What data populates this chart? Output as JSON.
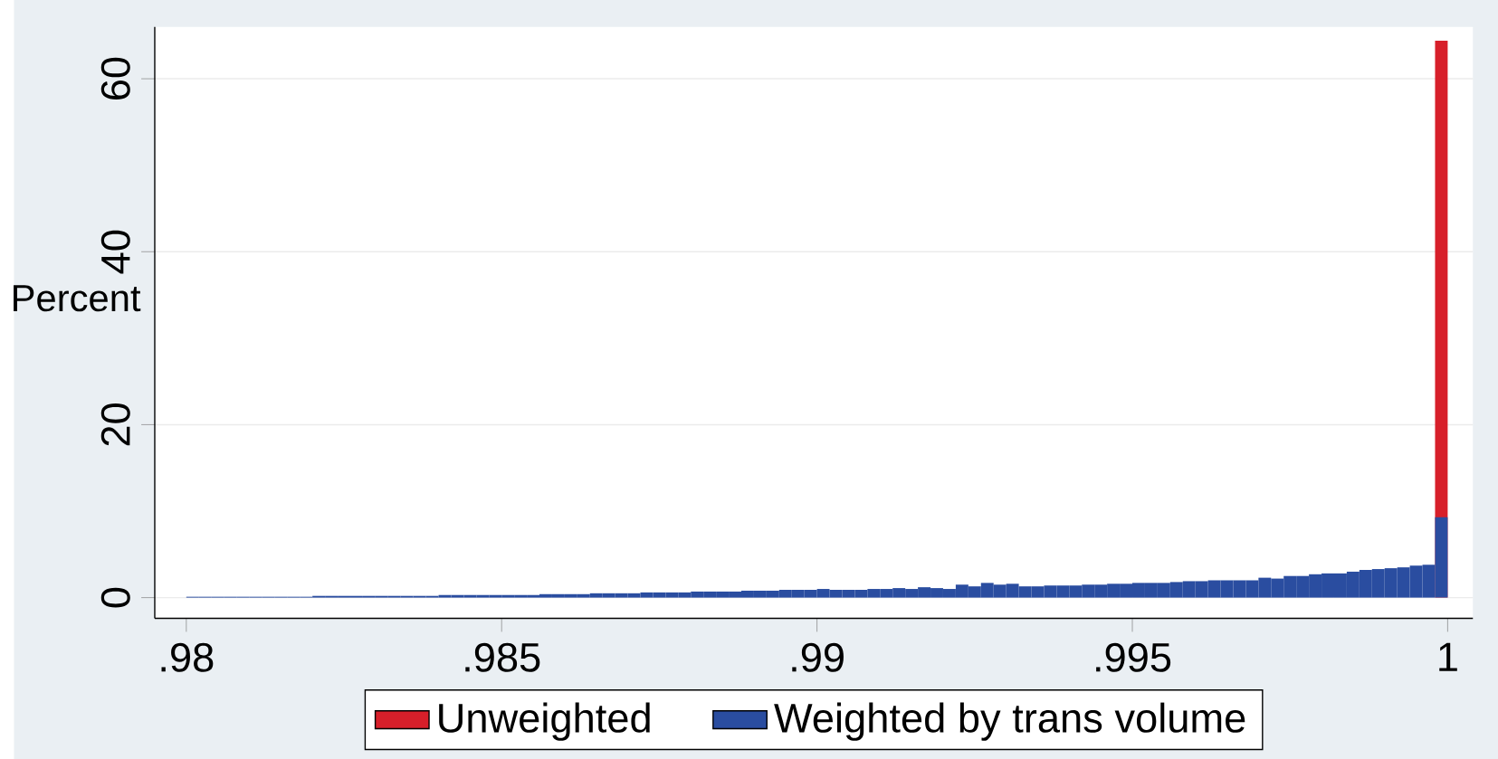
{
  "chart_data": {
    "type": "histogram",
    "ylabel": "Percent",
    "bins": [
      0.98,
      0.9802,
      0.9804,
      0.9806,
      0.9808,
      0.981,
      0.9812,
      0.9814,
      0.9816,
      0.9818,
      0.982,
      0.9822,
      0.9824,
      0.9826,
      0.9828,
      0.983,
      0.9832,
      0.9834,
      0.9836,
      0.9838,
      0.984,
      0.9842,
      0.9844,
      0.9846,
      0.9848,
      0.985,
      0.9852,
      0.9854,
      0.9856,
      0.9858,
      0.986,
      0.9862,
      0.9864,
      0.9866,
      0.9868,
      0.987,
      0.9872,
      0.9874,
      0.9876,
      0.9878,
      0.988,
      0.9882,
      0.9884,
      0.9886,
      0.9888,
      0.989,
      0.9892,
      0.9894,
      0.9896,
      0.9898,
      0.99,
      0.9902,
      0.9904,
      0.9906,
      0.9908,
      0.991,
      0.9912,
      0.9914,
      0.9916,
      0.9918,
      0.992,
      0.9922,
      0.9924,
      0.9926,
      0.9928,
      0.993,
      0.9932,
      0.9934,
      0.9936,
      0.9938,
      0.994,
      0.9942,
      0.9944,
      0.9946,
      0.9948,
      0.995,
      0.9952,
      0.9954,
      0.9956,
      0.9958,
      0.996,
      0.9962,
      0.9964,
      0.9966,
      0.9968,
      0.997,
      0.9972,
      0.9974,
      0.9976,
      0.9978,
      0.998,
      0.9982,
      0.9984,
      0.9986,
      0.9988,
      0.999,
      0.9992,
      0.9994,
      0.9996,
      0.9998,
      1.0
    ],
    "series": [
      {
        "name": "Unweighted",
        "color": "#d71f2a",
        "values": [
          null,
          null,
          null,
          null,
          null,
          null,
          null,
          null,
          null,
          null,
          null,
          null,
          null,
          null,
          null,
          null,
          null,
          null,
          null,
          null,
          null,
          null,
          null,
          null,
          null,
          null,
          null,
          null,
          null,
          null,
          null,
          null,
          null,
          null,
          null,
          null,
          null,
          null,
          null,
          null,
          null,
          null,
          null,
          null,
          null,
          null,
          null,
          null,
          null,
          null,
          null,
          null,
          null,
          null,
          null,
          null,
          null,
          null,
          null,
          null,
          null,
          null,
          null,
          null,
          null,
          null,
          null,
          null,
          null,
          null,
          null,
          null,
          null,
          null,
          null,
          null,
          null,
          null,
          null,
          null,
          null,
          null,
          null,
          null,
          null,
          null,
          null,
          null,
          null,
          null,
          null,
          null,
          null,
          null,
          null,
          null,
          null,
          null,
          null,
          64.4
        ]
      },
      {
        "name": "Weighted by trans volume",
        "color": "#2a4da0",
        "values": [
          0.1,
          0.1,
          0.1,
          0.1,
          0.1,
          0.1,
          0.1,
          0.1,
          0.1,
          0.1,
          0.2,
          0.2,
          0.2,
          0.2,
          0.2,
          0.2,
          0.2,
          0.2,
          0.2,
          0.2,
          0.3,
          0.3,
          0.3,
          0.3,
          0.3,
          0.3,
          0.3,
          0.3,
          0.4,
          0.4,
          0.4,
          0.4,
          0.5,
          0.5,
          0.5,
          0.5,
          0.6,
          0.6,
          0.6,
          0.6,
          0.7,
          0.7,
          0.7,
          0.7,
          0.8,
          0.8,
          0.8,
          0.9,
          0.9,
          0.9,
          1.0,
          0.9,
          0.9,
          0.9,
          1.0,
          1.0,
          1.1,
          1.0,
          1.2,
          1.1,
          1.0,
          1.5,
          1.3,
          1.7,
          1.5,
          1.6,
          1.3,
          1.3,
          1.4,
          1.4,
          1.4,
          1.5,
          1.5,
          1.6,
          1.6,
          1.7,
          1.7,
          1.7,
          1.8,
          1.9,
          1.9,
          2.0,
          2.0,
          2.0,
          2.0,
          2.3,
          2.2,
          2.5,
          2.5,
          2.7,
          2.8,
          2.8,
          3.0,
          3.2,
          3.3,
          3.4,
          3.5,
          3.7,
          3.8,
          9.3
        ]
      }
    ],
    "xlim": [
      0.9795,
      1.0004
    ],
    "ylim": [
      -2.4,
      66
    ],
    "xticks": [
      {
        "value": 0.98,
        "label": ".98"
      },
      {
        "value": 0.985,
        "label": ".985"
      },
      {
        "value": 0.99,
        "label": ".99"
      },
      {
        "value": 0.995,
        "label": ".995"
      },
      1
    ],
    "yticks": [
      0,
      20,
      40,
      60
    ],
    "grid": "y",
    "legend": "bottom"
  }
}
